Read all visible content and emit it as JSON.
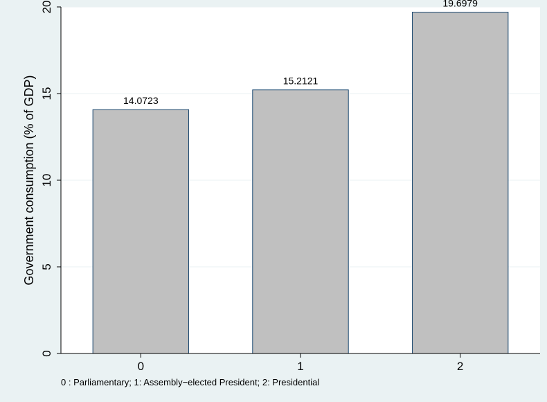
{
  "chart_data": {
    "type": "bar",
    "categories": [
      "0",
      "1",
      "2"
    ],
    "values": [
      14.0723,
      15.2121,
      19.6979
    ],
    "data_labels": [
      "14.0723",
      "15.2121",
      "19.6979"
    ],
    "title": "",
    "xlabel": "",
    "ylabel": "Government consumption (% of GDP)",
    "ylim": [
      0,
      20
    ],
    "yticks": [
      0,
      5,
      10,
      15,
      20
    ],
    "grid": true,
    "legend": "none",
    "note": "0 : Parliamentary; 1: Assembly−elected President; 2: Presidential",
    "colors": {
      "background": "#eaf2f3",
      "plot_area": "#ffffff",
      "bar_fill": "#c0c0c0",
      "bar_stroke": "#1a476f",
      "grid": "#eaf2f3"
    }
  }
}
